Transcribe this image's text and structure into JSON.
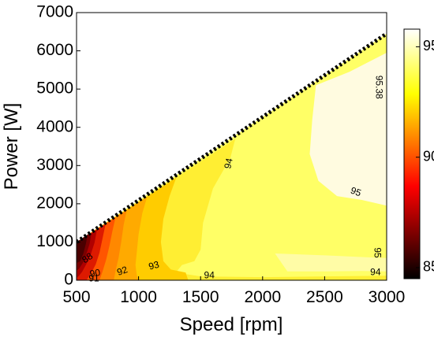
{
  "chart_data": {
    "type": "heatmap",
    "subtype": "filled-contour",
    "title": "",
    "xlabel": "Speed [rpm]",
    "ylabel": "Power [W]",
    "xlim": [
      500,
      3000
    ],
    "ylim": [
      0,
      7000
    ],
    "x_ticks": [
      500,
      1000,
      1500,
      2000,
      2500,
      3000
    ],
    "y_ticks": [
      0,
      1000,
      2000,
      3000,
      4000,
      5000,
      6000,
      7000
    ],
    "grid": false,
    "colorbar": {
      "range": [
        84.5,
        95.8
      ],
      "ticks": [
        85,
        90,
        95
      ],
      "colormap": "hot",
      "position": "right"
    },
    "limit_line": {
      "style": "dotted",
      "color": "#000000",
      "points": [
        [
          500,
          1000
        ],
        [
          3000,
          6450
        ]
      ]
    },
    "contour_labels": [
      {
        "text": "95.38",
        "x": 2935,
        "y": 5050,
        "angle": 90
      },
      {
        "text": "95",
        "x": 2750,
        "y": 2300,
        "angle": 20
      },
      {
        "text": "95",
        "x": 2920,
        "y": 720,
        "angle": 90
      },
      {
        "text": "94",
        "x": 1730,
        "y": 3050,
        "angle": -78
      },
      {
        "text": "94",
        "x": 1570,
        "y": 120,
        "angle": 0
      },
      {
        "text": "94",
        "x": 2910,
        "y": 200,
        "angle": 0
      },
      {
        "text": "93",
        "x": 1125,
        "y": 370,
        "angle": -15
      },
      {
        "text": "92",
        "x": 870,
        "y": 230,
        "angle": -20
      },
      {
        "text": "90",
        "x": 650,
        "y": 170,
        "angle": -10
      },
      {
        "text": "88",
        "x": 590,
        "y": 570,
        "angle": -35
      },
      {
        "text": "91",
        "x": 640,
        "y": 30,
        "angle": 0
      }
    ],
    "bands": [
      {
        "level": 85.5,
        "color": "#4a0000",
        "points": [
          [
            500,
            1000
          ],
          [
            535,
            1070
          ],
          [
            590,
            1200
          ],
          [
            575,
            950
          ],
          [
            555,
            700
          ],
          [
            530,
            500
          ],
          [
            500,
            450
          ]
        ]
      },
      {
        "level": 87,
        "color": "#7a0000",
        "points": [
          [
            500,
            1000
          ],
          [
            590,
            1200
          ],
          [
            620,
            1230
          ],
          [
            605,
            950
          ],
          [
            580,
            700
          ],
          [
            550,
            450
          ],
          [
            520,
            300
          ],
          [
            500,
            250
          ]
        ]
      },
      {
        "level": 88.5,
        "color": "#b00000",
        "points": [
          [
            500,
            1000
          ],
          [
            620,
            1230
          ],
          [
            665,
            1330
          ],
          [
            645,
            980
          ],
          [
            615,
            680
          ],
          [
            580,
            430
          ],
          [
            545,
            220
          ],
          [
            515,
            100
          ],
          [
            500,
            80
          ]
        ]
      },
      {
        "level": 89.5,
        "color": "#dd1a00",
        "points": [
          [
            500,
            1000
          ],
          [
            665,
            1330
          ],
          [
            735,
            1480
          ],
          [
            710,
            1100
          ],
          [
            685,
            720
          ],
          [
            655,
            420
          ],
          [
            615,
            170
          ],
          [
            580,
            0
          ],
          [
            500,
            0
          ]
        ]
      },
      {
        "level": 91,
        "color": "#ff5500",
        "points": [
          [
            500,
            1000
          ],
          [
            735,
            1480
          ],
          [
            815,
            1650
          ],
          [
            790,
            1300
          ],
          [
            765,
            900
          ],
          [
            740,
            550
          ],
          [
            710,
            230
          ],
          [
            685,
            0
          ],
          [
            500,
            0
          ]
        ]
      },
      {
        "level": 92,
        "color": "#ff8800",
        "points": [
          [
            500,
            1000
          ],
          [
            815,
            1650
          ],
          [
            905,
            1840
          ],
          [
            880,
            1450
          ],
          [
            860,
            1000
          ],
          [
            840,
            600
          ],
          [
            815,
            250
          ],
          [
            800,
            0
          ],
          [
            500,
            0
          ]
        ]
      },
      {
        "level": 92.8,
        "color": "#ffaa00",
        "points": [
          [
            500,
            1000
          ],
          [
            905,
            1840
          ],
          [
            1070,
            2190
          ],
          [
            1030,
            1750
          ],
          [
            1000,
            1200
          ],
          [
            985,
            700
          ],
          [
            975,
            400
          ],
          [
            985,
            150
          ],
          [
            1000,
            0
          ],
          [
            500,
            0
          ]
        ]
      },
      {
        "level": 93.5,
        "color": "#ffcc00",
        "points": [
          [
            500,
            1000
          ],
          [
            1070,
            2190
          ],
          [
            1305,
            2690
          ],
          [
            1250,
            2200
          ],
          [
            1200,
            1600
          ],
          [
            1180,
            1000
          ],
          [
            1200,
            500
          ],
          [
            1260,
            280
          ],
          [
            1380,
            200
          ],
          [
            1400,
            0
          ],
          [
            500,
            0
          ]
        ]
      },
      {
        "level": 94.3,
        "color": "#ffee33",
        "points": [
          [
            500,
            1000
          ],
          [
            1305,
            2690
          ],
          [
            1780,
            3700
          ],
          [
            1740,
            3200
          ],
          [
            1600,
            2400
          ],
          [
            1520,
            1500
          ],
          [
            1500,
            800
          ],
          [
            1450,
            500
          ],
          [
            1350,
            400
          ],
          [
            1300,
            200
          ],
          [
            1500,
            100
          ],
          [
            2000,
            80
          ],
          [
            3000,
            120
          ],
          [
            3000,
            0
          ],
          [
            500,
            0
          ]
        ]
      }
    ],
    "regions": [
      {
        "level": 95.38,
        "color": "#fffbe0",
        "points": [
          [
            2430,
            5100
          ],
          [
            2400,
            4200
          ],
          [
            2380,
            3300
          ],
          [
            2450,
            2600
          ],
          [
            2600,
            2200
          ],
          [
            2800,
            2100
          ],
          [
            3000,
            1950
          ],
          [
            3000,
            5950
          ],
          [
            2700,
            5450
          ]
        ]
      },
      {
        "level": 95,
        "color": "#fffca6",
        "points": [
          [
            2100,
            700
          ],
          [
            2500,
            650
          ],
          [
            2850,
            600
          ],
          [
            3000,
            580
          ],
          [
            3000,
            230
          ],
          [
            2800,
            240
          ],
          [
            2500,
            230
          ],
          [
            2200,
            230
          ]
        ]
      }
    ],
    "base_level": 94.8,
    "base_color": "#ffff66"
  }
}
